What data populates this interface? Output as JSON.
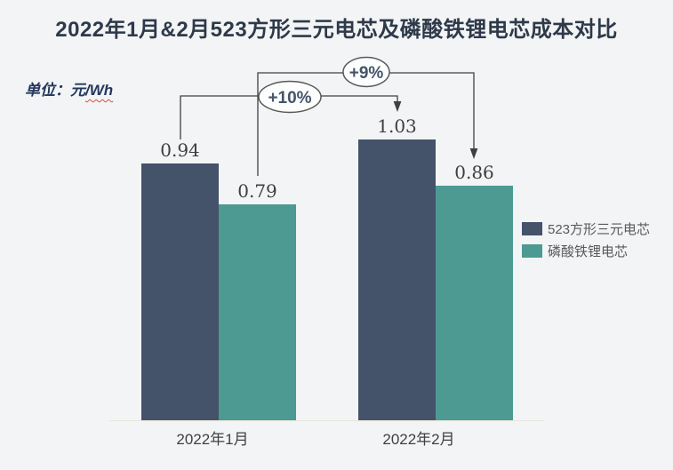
{
  "title": "2022年1月&2月523方形三元电芯及磷酸铁锂电芯成本对比",
  "unit": {
    "prefix": "单位：元",
    "suffix": "/Wh"
  },
  "chart_data": {
    "type": "bar",
    "categories": [
      "2022年1月",
      "2022年2月"
    ],
    "series": [
      {
        "name": "523方形三元电芯",
        "color": "#44526a",
        "values": [
          0.94,
          1.03
        ]
      },
      {
        "name": "磷酸铁锂电芯",
        "color": "#4c9a92",
        "values": [
          0.79,
          0.86
        ]
      }
    ],
    "value_labels": [
      "0.94",
      "0.79",
      "1.03",
      "0.86"
    ],
    "annotations": [
      {
        "label": "+10%",
        "series": "523方形三元电芯",
        "from": "2022年1月",
        "to": "2022年2月"
      },
      {
        "label": "+9%",
        "series": "磷酸铁锂电芯",
        "from": "2022年1月",
        "to": "2022年2月"
      }
    ],
    "ylabel": "元/Wh",
    "y_axis_shown": false,
    "grid": false,
    "legend_position": "right"
  },
  "colors": {
    "background": "#f2f4f5",
    "title_text": "#2e3949",
    "unit_text": "#24365c",
    "spellcheck_underline": "#e04a35",
    "series_dark": "#44526a",
    "series_teal": "#4c9a92",
    "value_label_text": "#3f3f3f",
    "axis_label_text": "#404040",
    "legend_text": "#595959",
    "connector_line": "#404040",
    "oval_border": "#595959",
    "oval_fill": "#fcfdfd",
    "axis_line": "#e9e7dc"
  }
}
